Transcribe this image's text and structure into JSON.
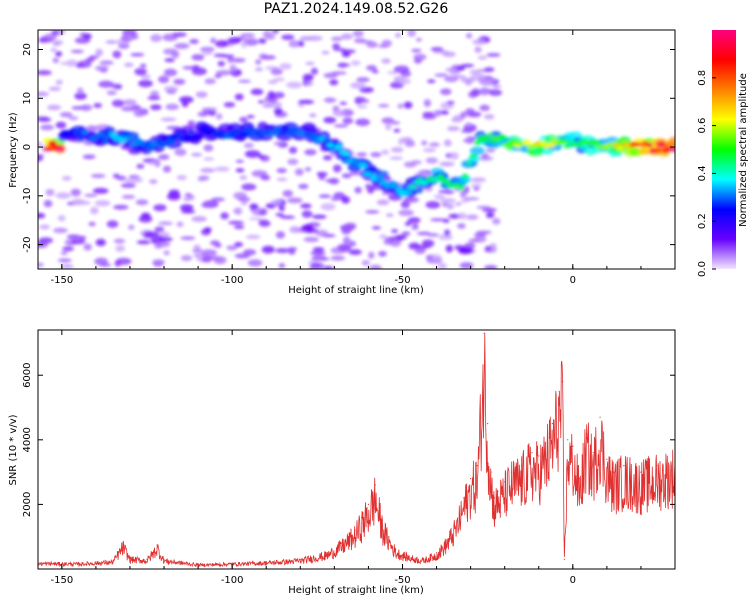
{
  "title": "PAZ1.2024.149.08.52.G26",
  "chart_data": [
    {
      "type": "heatmap",
      "xlabel": "Height of straight line (km)",
      "ylabel": "Frequency (Hz)",
      "xlim": [
        -157,
        30
      ],
      "ylim": [
        -25,
        24
      ],
      "xticks": [
        -150,
        -100,
        -50,
        0
      ],
      "yticks": [
        -20,
        -10,
        0,
        10,
        20
      ],
      "colorbar": {
        "label": "Normalized spectral amplitude",
        "range": [
          0,
          1
        ],
        "ticks": [
          "0.0",
          "0.2",
          "0.4",
          "0.6",
          "0.8"
        ],
        "colors": [
          "#f2e6ff",
          "#6600ff",
          "#0000ff",
          "#00ffff",
          "#00ff00",
          "#ffff00",
          "#ff8000",
          "#ff0000",
          "#ff0080"
        ]
      },
      "ridge": [
        {
          "x": -150,
          "y": 3,
          "a": 0.25
        },
        {
          "x": -140,
          "y": 2,
          "a": 0.3
        },
        {
          "x": -132,
          "y": 2,
          "a": 0.35
        },
        {
          "x": -125,
          "y": 0,
          "a": 0.3
        },
        {
          "x": -110,
          "y": 3,
          "a": 0.25
        },
        {
          "x": -90,
          "y": 3,
          "a": 0.3
        },
        {
          "x": -78,
          "y": 3,
          "a": 0.3
        },
        {
          "x": -70,
          "y": 0,
          "a": 0.35
        },
        {
          "x": -60,
          "y": -5,
          "a": 0.35
        },
        {
          "x": -50,
          "y": -9,
          "a": 0.35
        },
        {
          "x": -40,
          "y": -6,
          "a": 0.45
        },
        {
          "x": -33,
          "y": -8,
          "a": 0.45
        },
        {
          "x": -27,
          "y": 2,
          "a": 0.45
        },
        {
          "x": -18,
          "y": 1,
          "a": 0.55
        },
        {
          "x": -10,
          "y": 0,
          "a": 0.65
        },
        {
          "x": 0,
          "y": 1,
          "a": 0.45
        },
        {
          "x": 10,
          "y": 0,
          "a": 0.55
        },
        {
          "x": 20,
          "y": 0,
          "a": 0.85
        },
        {
          "x": 30,
          "y": 0,
          "a": 0.95
        }
      ]
    },
    {
      "type": "line",
      "xlabel": "Height of straight line (km)",
      "ylabel": "SNR (10 * v/v)",
      "xlim": [
        -157,
        30
      ],
      "ylim": [
        0,
        7400
      ],
      "xticks": [
        -150,
        -100,
        -50,
        0
      ],
      "yticks": [
        2000,
        4000,
        6000
      ],
      "series": [
        {
          "color": "#e03030",
          "x": [
            -157,
            -145,
            -135,
            -132,
            -130,
            -125,
            -122,
            -120,
            -110,
            -100,
            -90,
            -80,
            -72,
            -68,
            -64,
            -62,
            -60,
            -58,
            -56,
            -54,
            -52,
            -48,
            -44,
            -40,
            -37,
            -34,
            -32,
            -30,
            -28,
            -26,
            -25,
            -24,
            -23,
            -22,
            -20,
            -18,
            -15,
            -12,
            -10,
            -8,
            -6,
            -4,
            -3,
            -2.5,
            -1.5,
            0,
            2,
            4,
            6,
            8,
            10,
            12,
            15,
            20,
            25,
            30
          ],
          "y": [
            200,
            180,
            250,
            800,
            350,
            300,
            750,
            300,
            150,
            180,
            220,
            300,
            500,
            800,
            1200,
            1600,
            2000,
            2600,
            1500,
            1000,
            600,
            400,
            300,
            500,
            900,
            1500,
            2200,
            2800,
            3200,
            7300,
            4500,
            3000,
            2200,
            2400,
            2700,
            3000,
            3200,
            3600,
            3500,
            3900,
            4500,
            5500,
            5800,
            300,
            4000,
            3800,
            2800,
            4200,
            3600,
            4700,
            3400,
            3000,
            3200,
            3000,
            3200,
            3400
          ]
        }
      ]
    }
  ]
}
